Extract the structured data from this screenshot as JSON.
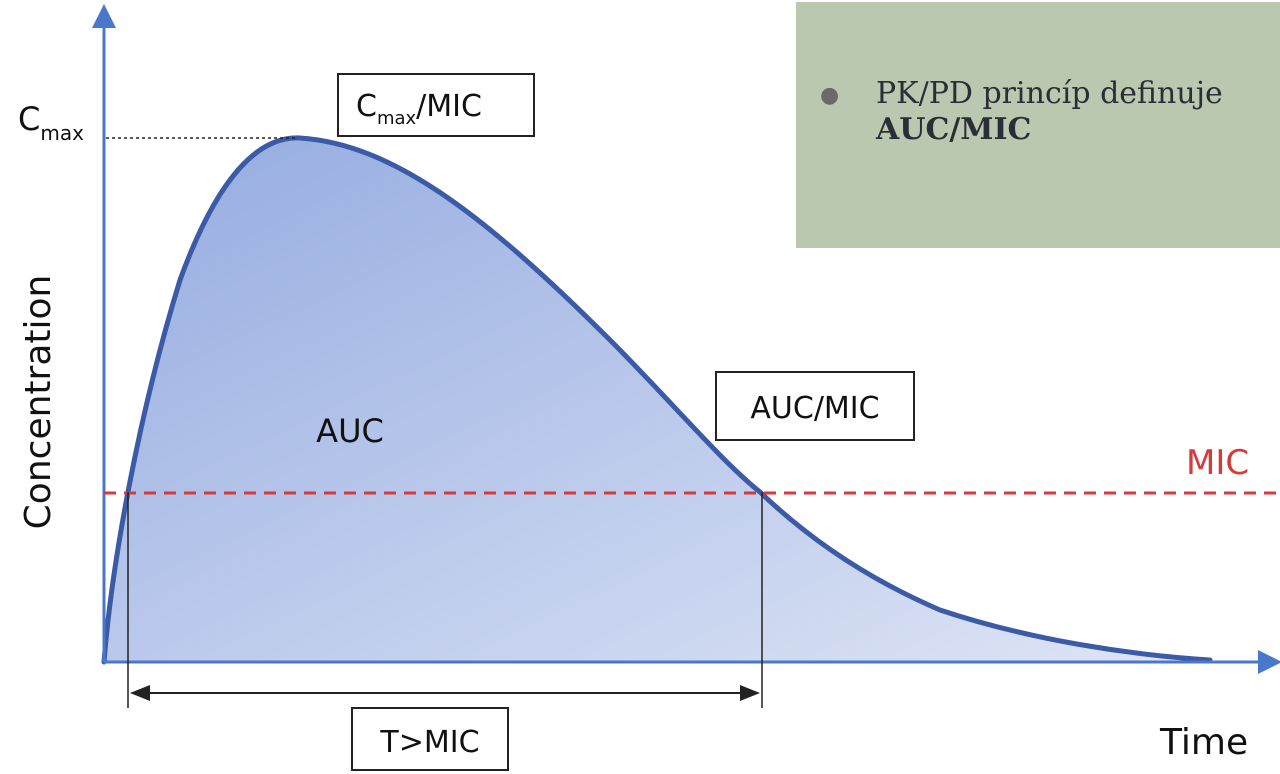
{
  "diagram": {
    "axes": {
      "y_title": "Concentration",
      "x_title": "Time"
    },
    "cmax_tick": {
      "base": "C",
      "sub": "max"
    },
    "boxes": {
      "cmax_mic": {
        "base": "C",
        "sub": "max",
        "rest": "/MIC"
      },
      "auc_mic": "AUC/MIC",
      "t_mic": "T>MIC"
    },
    "area_label": "AUC",
    "threshold_label": "MIC",
    "colors": {
      "curve": "#3b5ba6",
      "fill_top": "#8fa7df",
      "fill_bottom": "#d8e0f3",
      "threshold": "#d63a3a",
      "axis": "#4a78c8",
      "callout_bg": "#bac8b0"
    }
  },
  "callout": {
    "bullet_text": "PK/PD princíp definuje",
    "bold_text": "AUC/MIC"
  }
}
